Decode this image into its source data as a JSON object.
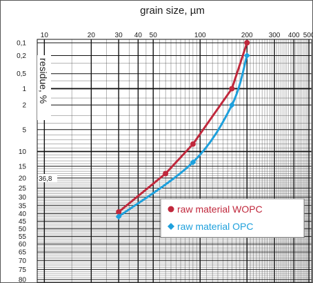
{
  "chart_data": {
    "type": "line",
    "title": "grain size, µm",
    "xlabel": "grain size, µm",
    "ylabel": "residue, %",
    "x_scale": "log",
    "xlim": [
      9,
      520
    ],
    "x_tick_labels": [
      "10",
      "20",
      "30",
      "40",
      "50",
      "100",
      "200",
      "300",
      "400",
      "500"
    ],
    "x_tick_values": [
      10,
      20,
      30,
      40,
      50,
      100,
      200,
      300,
      400,
      500
    ],
    "y_tick_labels": [
      "0,1",
      "0,2",
      "0,5",
      "1",
      "2",
      "5",
      "10",
      "15",
      "20",
      "25",
      "30",
      "35",
      "40",
      "45",
      "50",
      "55",
      "60",
      "65",
      "70",
      "75",
      "80"
    ],
    "y_tick_values": [
      0.1,
      0.2,
      0.5,
      1,
      2,
      5,
      10,
      15,
      20,
      25,
      30,
      35,
      40,
      45,
      50,
      55,
      60,
      65,
      70,
      75,
      80
    ],
    "y_scale": "probability (RRSB), inverted: 0,1 at top",
    "grid": true,
    "annotation": "36,8",
    "legend_position": "bottom-right",
    "series": [
      {
        "name": "raw material WOPC",
        "color": "#c0283c",
        "marker": "circle",
        "x": [
          30,
          60,
          90,
          160,
          200
        ],
        "y": [
          39,
          18,
          8,
          1,
          0.1
        ]
      },
      {
        "name": "raw material OPC",
        "color": "#1ea0dc",
        "marker": "diamond",
        "x": [
          30,
          90,
          160,
          200
        ],
        "y": [
          42,
          13.5,
          2,
          0.2
        ]
      }
    ]
  }
}
